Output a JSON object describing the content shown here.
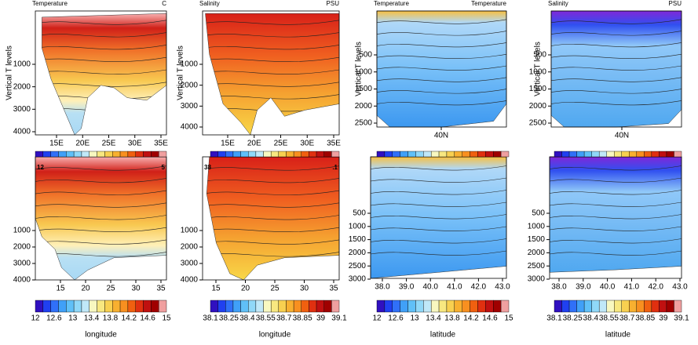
{
  "panels": [
    {
      "header_left": "Temperature",
      "header_right": "C",
      "y_label": "Vertical T levels",
      "yticks": [
        "1000",
        "2000",
        "3000",
        "4000"
      ],
      "xticks": [
        "15E",
        "20E",
        "25E",
        "30E",
        "35E"
      ]
    },
    {
      "header_left": "Salinity",
      "header_right": "PSU",
      "y_label": "Vertical T levels",
      "yticks": [
        "1000",
        "2000",
        "3000",
        "4000"
      ],
      "xticks": [
        "15E",
        "20E",
        "25E",
        "30E",
        "35E"
      ]
    },
    {
      "header_left": "Temperature",
      "header_right": "Temperature",
      "y_label": "Vertical T levels",
      "yticks": [
        "500",
        "1000",
        "1500",
        "2000",
        "2500"
      ],
      "xticks": [
        "40N"
      ]
    },
    {
      "header_left": "Salinity",
      "header_right": "PSU",
      "y_label": "Vertical T levels",
      "yticks": [
        "500",
        "1000",
        "1500",
        "2000",
        "2500"
      ],
      "xticks": [
        "40N"
      ]
    },
    {
      "bar_left": "12",
      "bar_right": "5",
      "yticks": [
        "1000",
        "2000",
        "3000",
        "4000"
      ],
      "xticks": [
        "15",
        "20",
        "25",
        "30",
        "35"
      ]
    },
    {
      "bar_left": "38",
      "bar_right": ".1",
      "yticks": [
        "1000",
        "2000",
        "3000",
        "4000"
      ],
      "xticks": [
        "15",
        "20",
        "25",
        "30",
        "35"
      ]
    },
    {
      "yticks": [
        "500",
        "1000",
        "1500",
        "2000",
        "2500",
        "3000"
      ],
      "xticks": [
        "38.0",
        "39.0",
        "40.0",
        "41.0",
        "42.0",
        "43.0"
      ]
    },
    {
      "yticks": [
        "500",
        "1000",
        "1500",
        "2000",
        "2500",
        "3000"
      ],
      "xticks": [
        "38.0",
        "39.0",
        "40.0",
        "41.0",
        "42.0",
        "43.0"
      ]
    }
  ],
  "colorbars": [
    {
      "labels": [
        "12",
        "12.6",
        "13",
        "13.4",
        "13.8",
        "14.2",
        "14.6",
        "15"
      ],
      "title": "longitude"
    },
    {
      "labels": [
        "38.1",
        "38.25",
        "38.4",
        "38.55",
        "38.7",
        "38.85",
        "39",
        "39.1"
      ],
      "title": "longitude"
    },
    {
      "labels": [
        "12",
        "12.6",
        "13",
        "13.4",
        "13.8",
        "14.2",
        "14.6",
        "15"
      ],
      "title": "latitude"
    },
    {
      "labels": [
        "38.1",
        "38.25",
        "38.4",
        "38.55",
        "38.7",
        "38.85",
        "39",
        "39.1"
      ],
      "title": "latitude"
    }
  ]
}
